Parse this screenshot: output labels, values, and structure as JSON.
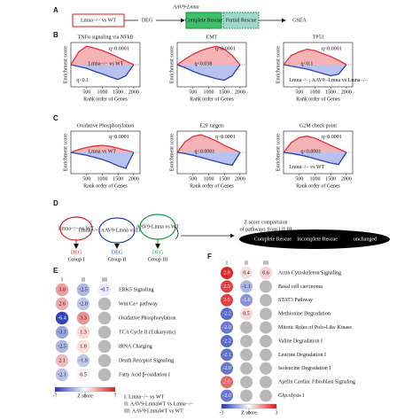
{
  "panel_labels": [
    "A",
    "B",
    "C",
    "D",
    "E",
    "F"
  ],
  "panel_a": {
    "start": "Lmna−/− vs WT",
    "arrow": "DEG",
    "treatment": "AAV9-Lmna",
    "complete": "Complete Rescue",
    "partial": "Partial Rescue",
    "end": "GSEA"
  },
  "chart_data": [
    {
      "type": "line",
      "title": "TNFα signaling via NFkB",
      "xlabel": "Rank order of Genes",
      "ylabel": "Enrichment score",
      "x": [
        0,
        250,
        500,
        750,
        1000,
        1250,
        1500,
        1750,
        2000
      ],
      "xlim": [
        0,
        2200
      ],
      "xticks": [
        500,
        1000,
        1500,
        2000
      ],
      "ylim": [
        -0.6,
        0.6
      ],
      "series": [
        {
          "color": "#e0323c",
          "values": [
            0,
            0.35,
            0.5,
            0.45,
            0.38,
            0.3,
            0.2,
            0.1,
            0
          ]
        },
        {
          "color": "#2b3fb0",
          "values": [
            0,
            -0.05,
            -0.1,
            -0.18,
            -0.25,
            -0.33,
            -0.4,
            -0.3,
            0
          ]
        }
      ],
      "annotations": [
        "q<0.0001",
        "Lmna−/− vs WT",
        "q<0.1"
      ]
    },
    {
      "type": "line",
      "title": "EMT",
      "xlabel": "Rank order of Genes",
      "ylabel": "Enrichment score",
      "x": [
        0,
        250,
        500,
        750,
        1000,
        1250,
        1500,
        1750,
        2000
      ],
      "xlim": [
        0,
        2200
      ],
      "xticks": [
        500,
        1000,
        1500,
        2000
      ],
      "ylim": [
        -0.6,
        0.6
      ],
      "series": [
        {
          "color": "#e0323c",
          "values": [
            0,
            0.15,
            0.28,
            0.38,
            0.45,
            0.5,
            0.42,
            0.25,
            0
          ]
        },
        {
          "color": "#2b3fb0",
          "values": [
            0,
            -0.08,
            -0.18,
            -0.26,
            -0.32,
            -0.38,
            -0.42,
            -0.3,
            0
          ]
        }
      ],
      "annotations": [
        "q<0.0001",
        "q<0.038"
      ]
    },
    {
      "type": "line",
      "title": "TP53",
      "xlabel": "Rank order of Genes",
      "ylabel": "Enrichment score",
      "x": [
        0,
        250,
        500,
        750,
        1000,
        1250,
        1500,
        1750,
        2000
      ],
      "xlim": [
        0,
        2200
      ],
      "xticks": [
        500,
        1000,
        1500,
        2000
      ],
      "ylim": [
        -0.6,
        0.6
      ],
      "series": [
        {
          "color": "#e0323c",
          "values": [
            0,
            0.25,
            0.35,
            0.42,
            0.38,
            0.3,
            0.22,
            0.12,
            0
          ]
        },
        {
          "color": "#2b3fb0",
          "values": [
            0,
            -0.04,
            -0.08,
            -0.12,
            -0.18,
            -0.24,
            -0.3,
            -0.26,
            0
          ]
        }
      ],
      "annotations": [
        "q<0.0001",
        "q<0.1",
        "Lmna−/−; AAV9 -Lmna vs Lmna−/−"
      ]
    },
    {
      "type": "line",
      "title": "Oxidative Phosphorylation",
      "xlabel": "Rank order of Genes",
      "ylabel": "Enrichment score",
      "x": [
        0,
        250,
        500,
        750,
        1000,
        1250,
        1500,
        1750,
        2000
      ],
      "xlim": [
        0,
        2200
      ],
      "xticks": [
        500,
        1000,
        1500,
        2000
      ],
      "ylim": [
        -0.6,
        0.6
      ],
      "series": [
        {
          "color": "#e0323c",
          "values": [
            0,
            0.08,
            0.14,
            0.18,
            0.2,
            0.17,
            0.12,
            0.06,
            0
          ]
        },
        {
          "color": "#2b3fb0",
          "values": [
            0,
            -0.04,
            -0.08,
            -0.14,
            -0.2,
            -0.28,
            -0.38,
            -0.45,
            0
          ]
        }
      ],
      "annotations": [
        "q<0.0001",
        "Lmna vs WT"
      ]
    },
    {
      "type": "line",
      "title": "E2F targets",
      "xlabel": "Rank order of Genes",
      "ylabel": "Enrichment score",
      "x": [
        0,
        250,
        500,
        750,
        1000,
        1250,
        1500,
        1750,
        2000
      ],
      "xlim": [
        0,
        2200
      ],
      "xticks": [
        500,
        1000,
        1500,
        2000
      ],
      "ylim": [
        -0.6,
        0.6
      ],
      "series": [
        {
          "color": "#e0323c",
          "values": [
            0,
            0.3,
            0.45,
            0.5,
            0.42,
            0.32,
            0.2,
            0.1,
            0
          ]
        },
        {
          "color": "#2b3fb0",
          "values": [
            0,
            -0.03,
            -0.08,
            -0.14,
            -0.2,
            -0.26,
            -0.32,
            -0.36,
            0
          ]
        }
      ],
      "annotations": [
        "q<0.0001",
        "q<0.0001"
      ]
    },
    {
      "type": "line",
      "title": "G2M check point",
      "xlabel": "Rank order of Genes",
      "ylabel": "Enrichment score",
      "x": [
        0,
        250,
        500,
        750,
        1000,
        1250,
        1500,
        1750,
        2000
      ],
      "xlim": [
        0,
        2200
      ],
      "xticks": [
        500,
        1000,
        1500,
        2000
      ],
      "ylim": [
        -0.6,
        0.6
      ],
      "series": [
        {
          "color": "#e0323c",
          "values": [
            0,
            0.28,
            0.42,
            0.46,
            0.4,
            0.3,
            0.2,
            0.1,
            0
          ]
        },
        {
          "color": "#2b3fb0",
          "values": [
            0,
            -0.03,
            -0.07,
            -0.12,
            -0.18,
            -0.24,
            -0.3,
            -0.34,
            0
          ]
        }
      ],
      "annotations": [
        "q<0.0001",
        "q<0.0001",
        "Lmna−/− vs WT"
      ]
    },
    {
      "type": "heatmap",
      "columns": [
        "I",
        "II",
        "III"
      ],
      "rows": [
        "ERK5 Signaling",
        "Wnt/Ca+ pathway",
        "Oxidative Phosphorylation",
        "TCA Cycle II (Eukaryotic)",
        "tRNA Charging",
        "Death Receptor Signaling",
        "Fatty Acid β-oxidation I"
      ],
      "values": [
        [
          3.0,
          -2.5,
          -0.7
        ],
        [
          2.6,
          -2.0,
          null
        ],
        [
          -6.4,
          3.3,
          null
        ],
        [
          -3.1,
          1.3,
          null
        ],
        [
          -2.5,
          1.0,
          null
        ],
        [
          2.1,
          -1.9,
          null
        ],
        [
          -2.1,
          0.5,
          null
        ]
      ],
      "value_labels": [
        [
          "3.0",
          "-2.5",
          "-0.7"
        ],
        [
          "2.6",
          "-2.0",
          null
        ],
        [
          "-6.4",
          "3.3",
          null
        ],
        [
          "-3.1",
          "1.3",
          null
        ],
        [
          "-2.5",
          "1.0",
          null
        ],
        [
          "2.1",
          "-1.9",
          null
        ],
        [
          "-2.1",
          "0.5",
          null
        ]
      ],
      "zlim": [
        -7,
        7
      ],
      "zticks": [
        -7,
        0,
        7
      ],
      "zlabel": "Z score"
    },
    {
      "type": "heatmap",
      "columns": [
        "I",
        "II",
        "III"
      ],
      "rows": [
        "Actin Cytoskeleton Signaling",
        "Basal cell carcinoma",
        "STAT3 Pathway",
        "Methionine Degradation",
        "Mitotic Roles of Polo-Like Kinase",
        "Valine Degradation I",
        "Leucine Degradation I",
        "Isoleucine Degradation I",
        "Apelin Cardiac Fibroblast Signaling",
        "Glycolysis I"
      ],
      "values": [
        [
          2.8,
          0.4,
          0.6
        ],
        [
          2.5,
          -1.1,
          null
        ],
        [
          2.5,
          -1.6,
          null
        ],
        [
          -2.2,
          0.5,
          null
        ],
        [
          -2.0,
          null,
          null
        ],
        [
          -2.2,
          null,
          null
        ],
        [
          -2.1,
          null,
          null
        ],
        [
          -2.0,
          null,
          null
        ],
        [
          2.0,
          null,
          null
        ],
        [
          -2.0,
          null,
          null
        ]
      ],
      "value_labels": [
        [
          "2.8",
          "0.4",
          "0.6"
        ],
        [
          "2.5",
          "-1.1",
          null
        ],
        [
          "2.5",
          "-1.6",
          null
        ],
        [
          "-2.2",
          "0.5",
          null
        ],
        [
          "-2.0",
          null,
          null
        ],
        [
          "-2.2",
          null,
          null
        ],
        [
          "-2.1",
          null,
          null
        ],
        [
          "-2.0",
          null,
          null
        ],
        [
          "2.0",
          null,
          null
        ],
        [
          "-2.0",
          null,
          null
        ]
      ],
      "zlim": [
        -3,
        3
      ],
      "zticks": [
        -3,
        0,
        3
      ],
      "zlabel": "Z score"
    }
  ],
  "panel_d": {
    "groups": [
      {
        "label": "Lmna−/− vs WT",
        "deg": "DEG",
        "name": "Group I"
      },
      {
        "label": "Lmna−/−; AAV9-Lmna vs Lmna−/−",
        "deg": "DEG",
        "name": "Group II"
      },
      {
        "label": "AAV9-Lmna vs WT",
        "deg": "DEG",
        "name": "Group III"
      }
    ],
    "comparison": [
      "Z score comparision",
      "of pathways from I,II,III"
    ],
    "outcomes": [
      "Complete Rescue",
      "Incomplete Rescue",
      "unchanged"
    ]
  },
  "legend_e": [
    "I: Lmna−/− vs WT",
    "II: AAV9-LmnaWT vs Lmna−/−",
    "III: AAV9-LmnaWT vs WT"
  ]
}
